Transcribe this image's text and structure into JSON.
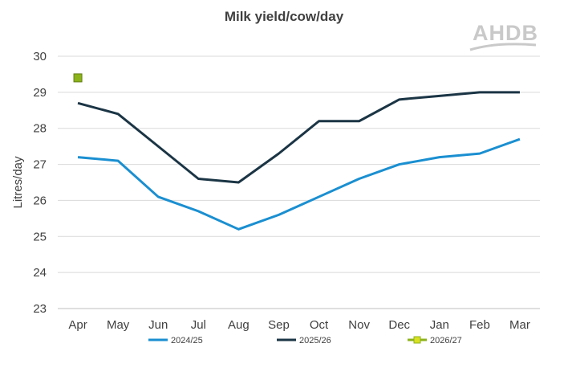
{
  "logo": {
    "text": "AHDB"
  },
  "chart_data": {
    "type": "line",
    "title": "Milk yield/cow/day",
    "xlabel": "",
    "ylabel": "Litres/day",
    "categories": [
      "Apr",
      "May",
      "Jun",
      "Jul",
      "Aug",
      "Sep",
      "Oct",
      "Nov",
      "Dec",
      "Jan",
      "Feb",
      "Mar"
    ],
    "ylim": [
      23,
      30
    ],
    "yticks": [
      23,
      24,
      25,
      26,
      27,
      28,
      29,
      30
    ],
    "grid": "horizontal",
    "legend_position": "bottom",
    "series": [
      {
        "name": "2024/25",
        "color": "#1a8fd1",
        "marker": "none",
        "values": [
          27.2,
          27.1,
          26.1,
          25.7,
          25.2,
          25.6,
          26.1,
          26.6,
          27.0,
          27.2,
          27.3,
          27.7
        ]
      },
      {
        "name": "2025/26",
        "color": "#1b3545",
        "marker": "none",
        "values": [
          28.7,
          28.4,
          27.5,
          26.6,
          26.5,
          27.3,
          28.2,
          28.2,
          28.8,
          28.9,
          29.0,
          29.0
        ]
      },
      {
        "name": "2026/27",
        "color": "#8cb31a",
        "marker": "square",
        "values": [
          29.4,
          null,
          null,
          null,
          null,
          null,
          null,
          null,
          null,
          null,
          null,
          null
        ]
      }
    ]
  }
}
